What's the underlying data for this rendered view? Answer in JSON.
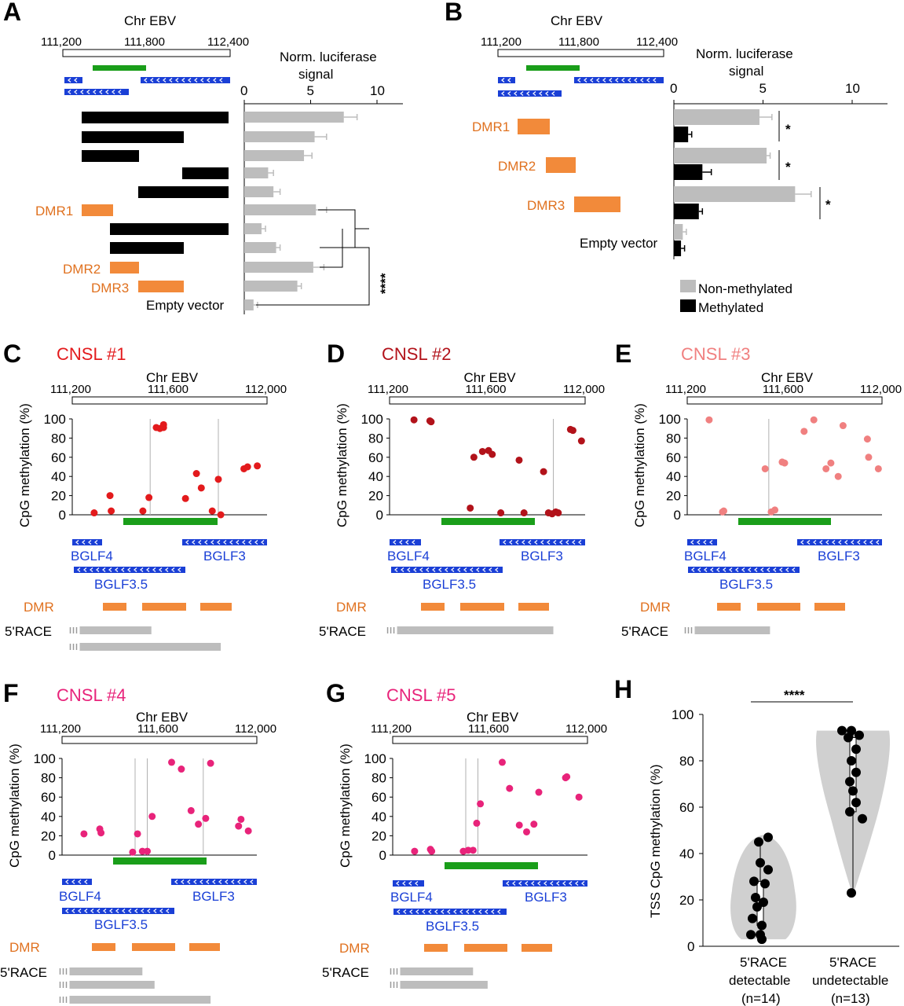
{
  "colors": {
    "black": "#000000",
    "gray_bar": "#bdbdbd",
    "green": "#1a9e1a",
    "blue": "#1a3fd6",
    "orange": "#f28a3a",
    "orange_text": "#e0711f",
    "red": "#e31a1c",
    "dark_red": "#b2121a",
    "pink": "#f08080",
    "magenta": "#e8237a",
    "violin": "#d0d0d0"
  },
  "panels": {
    "A": {
      "letter": "A",
      "chr_label": "Chr EBV",
      "chr_ticks": [
        "111,200",
        "111,800",
        "112,400"
      ],
      "axis_title_1": "Norm. luciferase",
      "axis_title_2": "signal",
      "row_labels": {
        "dmr1": "DMR1",
        "dmr2": "DMR2",
        "dmr3": "DMR3",
        "empty": "Empty vector"
      },
      "significance": "****",
      "chart_data": {
        "type": "bar",
        "orientation": "horizontal",
        "x_ticks": [
          "0",
          "5",
          "10"
        ],
        "xlim": [
          0,
          12
        ],
        "values": [
          7.5,
          5.3,
          4.5,
          1.8,
          2.2,
          5.4,
          1.3,
          2.4,
          5.2,
          4.0,
          0.7
        ],
        "errors": [
          1.0,
          0.9,
          0.6,
          0.4,
          0.5,
          0.8,
          0.3,
          0.3,
          0.8,
          0.3,
          0.3
        ]
      }
    },
    "B": {
      "letter": "B",
      "chr_label": "Chr EBV",
      "chr_ticks": [
        "111,200",
        "111,800",
        "112,400"
      ],
      "axis_title_1": "Norm. luciferase",
      "axis_title_2": "signal",
      "row_labels": {
        "dmr1": "DMR1",
        "dmr2": "DMR2",
        "dmr3": "DMR3",
        "empty": "Empty vector"
      },
      "significance": [
        "*",
        "*",
        "*"
      ],
      "chart_data": {
        "type": "bar",
        "orientation": "horizontal",
        "x_ticks": [
          "0",
          "5",
          "10"
        ],
        "xlim": [
          0,
          12
        ],
        "categories": [
          "DMR1",
          "DMR2",
          "DMR3",
          "Empty vector"
        ],
        "series": [
          {
            "name": "Non-methylated",
            "values": [
              4.8,
              5.2,
              6.8,
              0.5
            ],
            "errors": [
              0.7,
              0.2,
              0.9,
              0.2
            ]
          },
          {
            "name": "Methylated",
            "values": [
              0.8,
              1.6,
              1.4,
              0.4
            ],
            "errors": [
              0.2,
              0.5,
              0.2,
              0.2
            ]
          }
        ]
      }
    },
    "scatter_common": {
      "chr_label": "Chr EBV",
      "chr_ticks": [
        "111,200",
        "111,600",
        "112,000"
      ],
      "ylabel": "CpG methylation (%)",
      "y_ticks": [
        "0",
        "20",
        "40",
        "60",
        "80",
        "100"
      ],
      "genes": {
        "bglf4": "BGLF4",
        "bglf3": "BGLF3",
        "bglf35": "BGLF3.5"
      },
      "dmr_label": "DMR",
      "race_label": "5'RACE"
    },
    "C": {
      "letter": "C",
      "title": "CNSL #1",
      "color": "#e31a1c",
      "chart_data": {
        "type": "scatter",
        "x_range": [
          111200,
          112000
        ],
        "ylim": [
          0,
          100
        ],
        "x": [
          111290,
          111355,
          111360,
          111490,
          111515,
          111545,
          111560,
          111575,
          111575,
          111665,
          111710,
          111730,
          111775,
          111800,
          111810,
          111905,
          111920,
          111960
        ],
        "y": [
          2,
          20,
          4,
          4,
          18,
          91,
          90,
          94,
          91,
          17,
          43,
          28,
          4,
          37,
          0,
          48,
          50,
          51
        ]
      },
      "vlines": [
        111520,
        111800
      ],
      "race_bars": [
        [
          111250,
          111525
        ],
        [
          111250,
          111810
        ]
      ]
    },
    "D": {
      "letter": "D",
      "title": "CNSL #2",
      "color": "#b2121a",
      "chart_data": {
        "type": "scatter",
        "x_range": [
          111200,
          112000
        ],
        "ylim": [
          0,
          100
        ],
        "x": [
          111300,
          111365,
          111370,
          111530,
          111545,
          111580,
          111605,
          111620,
          111655,
          111730,
          111750,
          111830,
          111850,
          111865,
          111880,
          111890,
          111940,
          111950,
          111985
        ],
        "y": [
          99,
          98,
          97,
          7,
          60,
          66,
          67,
          63,
          2,
          57,
          2,
          45,
          2,
          1,
          3,
          2,
          89,
          88,
          77
        ]
      },
      "vlines": [
        111870
      ],
      "race_bars": [
        [
          111250,
          111870
        ]
      ]
    },
    "E": {
      "letter": "E",
      "title": "CNSL #3",
      "color": "#f08080",
      "chart_data": {
        "type": "scatter",
        "x_range": [
          111200,
          112000
        ],
        "ylim": [
          0,
          100
        ],
        "x": [
          111290,
          111345,
          111350,
          111520,
          111545,
          111560,
          111590,
          111600,
          111680,
          111720,
          111770,
          111790,
          111820,
          111840,
          111940,
          111945,
          111985
        ],
        "y": [
          99,
          3,
          4,
          48,
          3,
          5,
          55,
          54,
          87,
          99,
          48,
          54,
          40,
          93,
          79,
          60,
          48
        ]
      },
      "vlines": [
        111535
      ],
      "race_bars": [
        [
          111250,
          111540
        ]
      ]
    },
    "F": {
      "letter": "F",
      "title": "CNSL #4",
      "color": "#e8237a",
      "chart_data": {
        "type": "scatter",
        "x_range": [
          111200,
          112000
        ],
        "ylim": [
          0,
          100
        ],
        "x": [
          111290,
          111355,
          111360,
          111490,
          111510,
          111530,
          111550,
          111570,
          111650,
          111690,
          111730,
          111760,
          111790,
          111810,
          111925,
          111935,
          111965
        ],
        "y": [
          22,
          27,
          23,
          3,
          22,
          4,
          4,
          40,
          96,
          89,
          46,
          32,
          38,
          95,
          30,
          37,
          25
        ]
      },
      "vlines": [
        111500,
        111550,
        111780
      ],
      "race_bars": [
        [
          111250,
          111530
        ],
        [
          111250,
          111580
        ],
        [
          111250,
          111810
        ]
      ]
    },
    "G": {
      "letter": "G",
      "title": "CNSL #5",
      "color": "#e8237a",
      "chart_data": {
        "type": "scatter",
        "x_range": [
          111200,
          112000
        ],
        "ylim": [
          0,
          100
        ],
        "x": [
          111290,
          111355,
          111360,
          111490,
          111510,
          111530,
          111545,
          111560,
          111650,
          111680,
          111720,
          111750,
          111780,
          111800,
          111910,
          111915,
          111965
        ],
        "y": [
          4,
          6,
          4,
          4,
          5,
          5,
          33,
          53,
          96,
          69,
          31,
          24,
          32,
          65,
          80,
          81,
          60
        ]
      },
      "vlines": [
        111500,
        111550
      ],
      "race_bars": [
        [
          111250,
          111530
        ],
        [
          111250,
          111590
        ]
      ]
    },
    "H": {
      "letter": "H",
      "ylabel": "TSS CpG methylation (%)",
      "y_ticks": [
        "0",
        "20",
        "40",
        "60",
        "80",
        "100"
      ],
      "significance": "****",
      "chart_data": {
        "type": "violin",
        "ylim": [
          0,
          100
        ],
        "categories": [
          {
            "line1": "5'RACE",
            "line2": "detectable",
            "line3": "(n=14)"
          },
          {
            "line1": "5'RACE",
            "line2": "undetectable",
            "line3": "(n=13)"
          }
        ],
        "series": [
          {
            "values": [
              47,
              45,
              36,
              33,
              28,
              27,
              21,
              19,
              17,
              12,
              9,
              5,
              5,
              3
            ]
          },
          {
            "values": [
              93,
              93,
              91,
              90,
              85,
              80,
              75,
              71,
              67,
              62,
              58,
              55,
              23
            ]
          }
        ]
      }
    }
  }
}
